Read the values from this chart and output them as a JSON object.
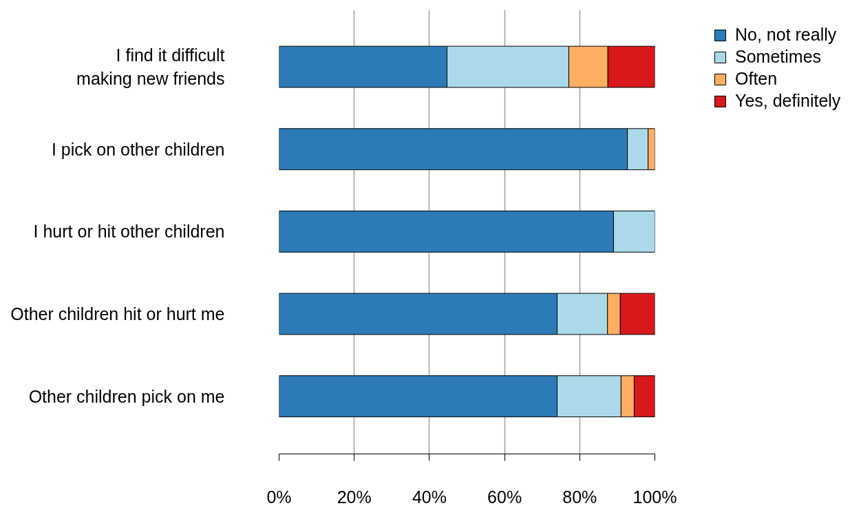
{
  "chart_data": {
    "type": "bar",
    "orientation": "horizontal",
    "stacked": true,
    "categories": [
      "I find it difficult\nmaking new friends",
      "I pick on other children",
      "I hurt or hit other children",
      "Other children hit or hurt me",
      "Other children pick on me"
    ],
    "series": [
      {
        "name": "No, not really",
        "color": "#2c7bb6",
        "values": [
          44.7,
          92.7,
          89.0,
          74.0,
          74.0
        ]
      },
      {
        "name": "Sometimes",
        "color": "#abd9e9",
        "values": [
          32.4,
          5.5,
          11.0,
          13.4,
          17.0
        ]
      },
      {
        "name": "Often",
        "color": "#fdae61",
        "values": [
          10.4,
          1.8,
          0,
          3.4,
          3.5
        ]
      },
      {
        "name": "Yes, definitely",
        "color": "#d7191c",
        "values": [
          12.5,
          0,
          0,
          9.2,
          5.5
        ]
      }
    ],
    "xlim": [
      0,
      100
    ],
    "xticks": [
      {
        "value": 0,
        "label": "0%"
      },
      {
        "value": 20,
        "label": "20%"
      },
      {
        "value": 40,
        "label": "40%"
      },
      {
        "value": 60,
        "label": "60%"
      },
      {
        "value": 80,
        "label": "80%"
      },
      {
        "value": 100,
        "label": "100%"
      }
    ],
    "grid": "x",
    "legend": "top right"
  }
}
